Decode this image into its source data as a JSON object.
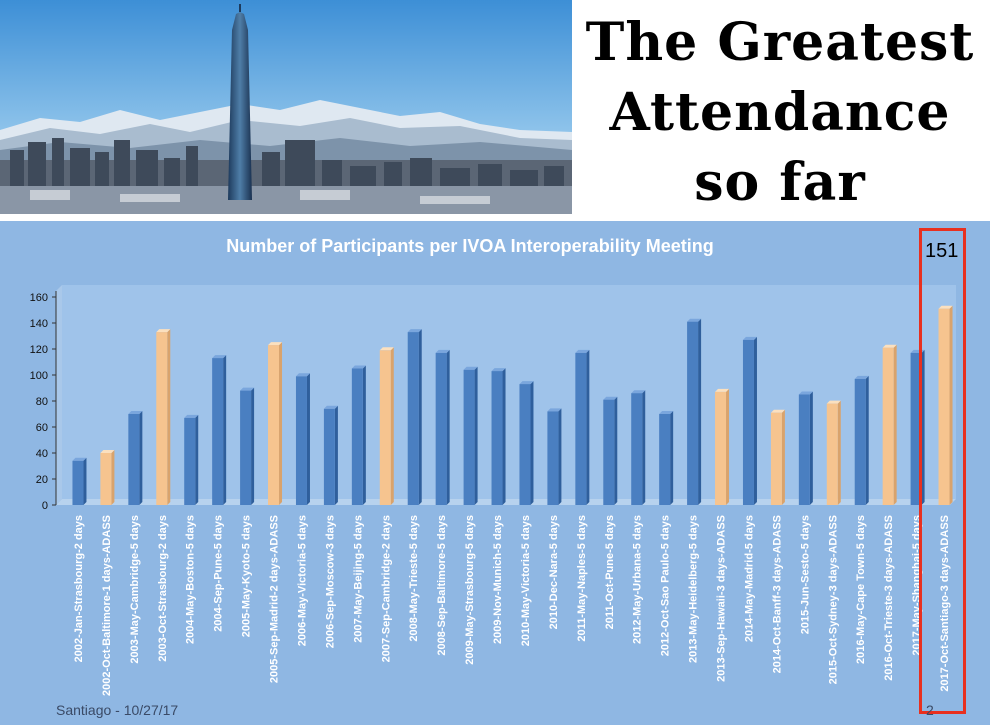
{
  "slide": {
    "headline_lines": [
      "The Greatest",
      "Attendance",
      "so far"
    ],
    "footer_left": "Santiago - 10/27/17",
    "page_number": "2",
    "callout_value": "151"
  },
  "colors": {
    "bar_regular": "#4a7fc1",
    "bar_adass": "#f6c48f",
    "panel_bg": "#8fb7e3",
    "callout_border": "#e8301f"
  },
  "chart_data": {
    "type": "bar",
    "title": "Number of Participants per IVOA Interoperability Meeting",
    "xlabel": "",
    "ylabel": "",
    "ylim": [
      0,
      160
    ],
    "yticks": [
      0,
      20,
      40,
      60,
      80,
      100,
      120,
      140,
      160
    ],
    "grid": false,
    "categories": [
      "2002-Jan-Strasbourg-2 days",
      "2002-Oct-Baltimore-1 days-ADASS",
      "2003-May-Cambridge-5 days",
      "2003-Oct-Strasbourg-2 days",
      "2004-May-Boston-5 days",
      "2004-Sep-Pune-5 days",
      "2005-May-Kyoto-5 days",
      "2005-Sep-Madrid-2 days-ADASS",
      "2006-May-Victoria-5 days",
      "2006-Sep-Moscow-3 days",
      "2007-May-Beijing-5 days",
      "2007-Sep-Cambridge-2 days",
      "2008-May-Trieste-5 days",
      "2008-Sep-Baltimore-5 days",
      "2009-May-Strasbourg-5 days",
      "2009-Nov-Munich-5 days",
      "2010-May-Victoria-5 days",
      "2010-Dec-Nara-5 days",
      "2011-May-Naples-5 days",
      "2011-Oct-Pune-5 days",
      "2012-May-Urbana-5 days",
      "2012-Oct-Sao Paulo-5 days",
      "2013-May-Heidelberg-5 days",
      "2013-Sep-Hawaii-3 days-ADASS",
      "2014-May-Madrid-5 days",
      "2014-Oct-Banff-3 days-ADASS",
      "2015-Jun-Sesto-5 days",
      "2015-Oct-Sydney-3 days-ADASS",
      "2016-May-Cape Town-5 days",
      "2016-Oct-Trieste-3 days-ADASS",
      "2017-May-Shanghai-5 days",
      "2017-Oct-Santiago-3 days-ADASS"
    ],
    "values": [
      34,
      40,
      70,
      133,
      67,
      113,
      88,
      123,
      99,
      74,
      105,
      119,
      133,
      117,
      104,
      103,
      93,
      72,
      117,
      81,
      86,
      70,
      141,
      87,
      127,
      71,
      85,
      78,
      97,
      121,
      117,
      151
    ],
    "highlight": [
      "regular",
      "adass",
      "regular",
      "adass",
      "regular",
      "regular",
      "regular",
      "adass",
      "regular",
      "regular",
      "regular",
      "adass",
      "regular",
      "regular",
      "regular",
      "regular",
      "regular",
      "regular",
      "regular",
      "regular",
      "regular",
      "regular",
      "regular",
      "adass",
      "regular",
      "adass",
      "regular",
      "adass",
      "regular",
      "adass",
      "regular",
      "adass"
    ]
  }
}
